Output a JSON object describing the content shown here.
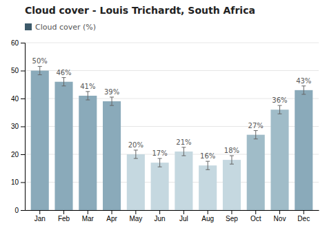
{
  "chart_data": {
    "type": "bar",
    "title": "Cloud cover - Louis Trichardt, South Africa",
    "categories": [
      "Jan",
      "Feb",
      "Mar",
      "Apr",
      "May",
      "Jun",
      "Jul",
      "Aug",
      "Sep",
      "Oct",
      "Nov",
      "Dec"
    ],
    "series": [
      {
        "name": "Cloud cover (%)",
        "color": "#3d5a6a",
        "colors": [
          "#8aaaba",
          "#8aaaba",
          "#8aaaba",
          "#8aaaba",
          "#c5d8e0",
          "#c5d8e0",
          "#c5d8e0",
          "#c5d8e0",
          "#c5d8e0",
          "#a0bcc8",
          "#a0bcc8",
          "#8aaaba"
        ],
        "values": [
          50,
          46,
          41,
          39,
          20,
          17,
          21,
          16,
          18,
          27,
          36,
          43
        ],
        "value_labels": [
          "50%",
          "46%",
          "41%",
          "39%",
          "20%",
          "17%",
          "21%",
          "16%",
          "18%",
          "27%",
          "36%",
          "43%"
        ],
        "errors": [
          1.5,
          1.5,
          1.5,
          1.5,
          1.5,
          1.5,
          1.5,
          1.5,
          1.5,
          1.5,
          1.5,
          1.5
        ]
      }
    ],
    "ylim": [
      0,
      60
    ],
    "yticks": [
      0,
      10,
      20,
      30,
      40,
      50,
      60
    ],
    "grid": true,
    "legend": "upper left",
    "data_labels": true
  }
}
